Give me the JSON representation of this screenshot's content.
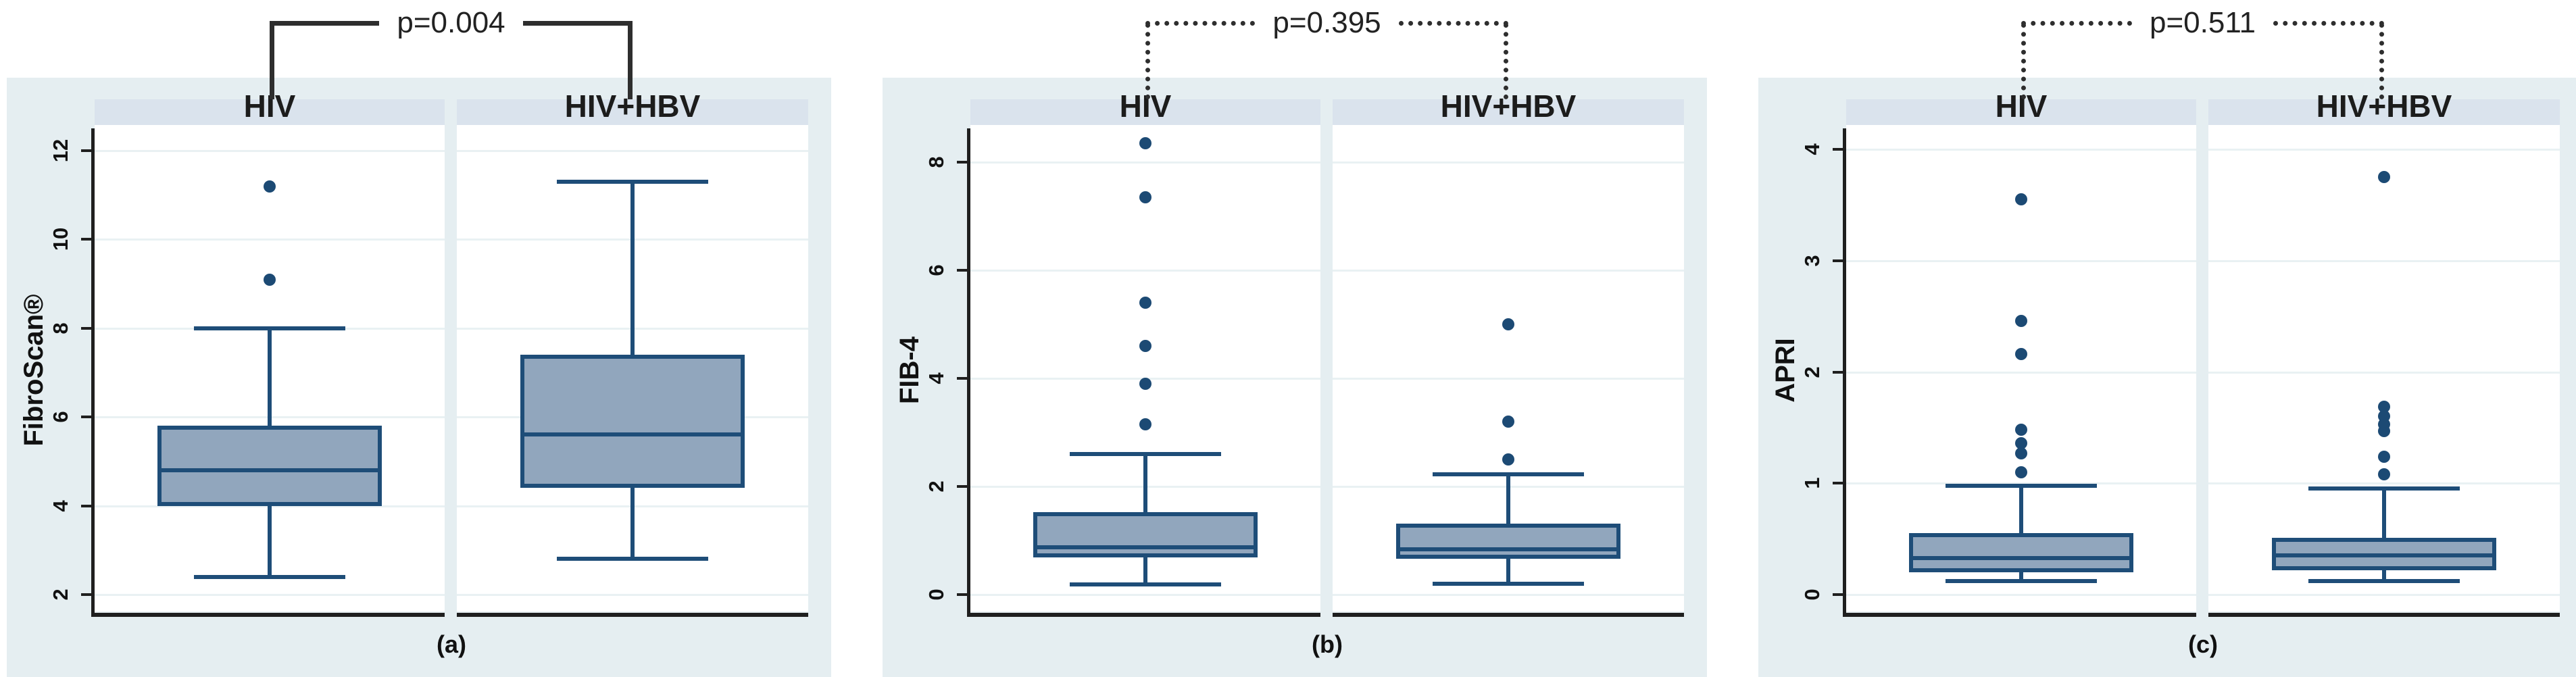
{
  "figure": {
    "colors": {
      "panel_background": "#e5eef1",
      "header_strip": "#dae3ed",
      "plot_background": "#ffffff",
      "gridline": "#e9f1f3",
      "box_fill": "#91a6bd",
      "box_border": "#1e4d78",
      "outlier_dot": "#1c4a74",
      "axis": "#1f1f1f",
      "bracket": "#2e2e2e"
    }
  },
  "chart_data": [
    {
      "type": "boxplot",
      "panel_label": "(a)",
      "ylabel": "FibroScan®",
      "p_value_label": "p=0.004",
      "bracket_style": "solid",
      "ylim": [
        2,
        12
      ],
      "yticks": [
        2,
        4,
        6,
        8,
        10,
        12
      ],
      "grid": true,
      "groups": [
        {
          "name": "HIV",
          "whisker_low": 2.4,
          "q1": 4.0,
          "median": 4.8,
          "q3": 5.8,
          "whisker_high": 8.0,
          "outliers": [
            9.1,
            11.2
          ]
        },
        {
          "name": "HIV+HBV",
          "whisker_low": 2.8,
          "q1": 4.4,
          "median": 5.6,
          "q3": 7.4,
          "whisker_high": 11.3,
          "outliers": []
        }
      ]
    },
    {
      "type": "boxplot",
      "panel_label": "(b)",
      "ylabel": "FIB-4",
      "p_value_label": "p=0.395",
      "bracket_style": "dotted",
      "ylim": [
        0,
        8
      ],
      "yticks": [
        0,
        2,
        4,
        6,
        8
      ],
      "grid": true,
      "groups": [
        {
          "name": "HIV",
          "whisker_low": 0.19,
          "q1": 0.69,
          "median": 0.88,
          "q3": 1.53,
          "whisker_high": 2.6,
          "outliers": [
            3.15,
            3.9,
            4.6,
            5.4,
            7.35,
            8.35
          ]
        },
        {
          "name": "HIV+HBV",
          "whisker_low": 0.2,
          "q1": 0.66,
          "median": 0.84,
          "q3": 1.31,
          "whisker_high": 2.22,
          "outliers": [
            2.5,
            3.2,
            5.0
          ]
        }
      ]
    },
    {
      "type": "boxplot",
      "panel_label": "(c)",
      "ylabel": "APRI",
      "p_value_label": "p=0.511",
      "bracket_style": "dotted",
      "ylim": [
        0,
        4
      ],
      "yticks": [
        0,
        1,
        2,
        3,
        4
      ],
      "grid": true,
      "groups": [
        {
          "name": "HIV",
          "whisker_low": 0.12,
          "q1": 0.2,
          "median": 0.33,
          "q3": 0.55,
          "whisker_high": 0.98,
          "outliers": [
            1.1,
            1.27,
            1.36,
            1.48,
            2.16,
            2.46,
            3.55
          ]
        },
        {
          "name": "HIV+HBV",
          "whisker_low": 0.12,
          "q1": 0.22,
          "median": 0.35,
          "q3": 0.51,
          "whisker_high": 0.95,
          "outliers": [
            1.08,
            1.24,
            1.47,
            1.53,
            1.6,
            1.69,
            3.75
          ]
        }
      ]
    }
  ]
}
